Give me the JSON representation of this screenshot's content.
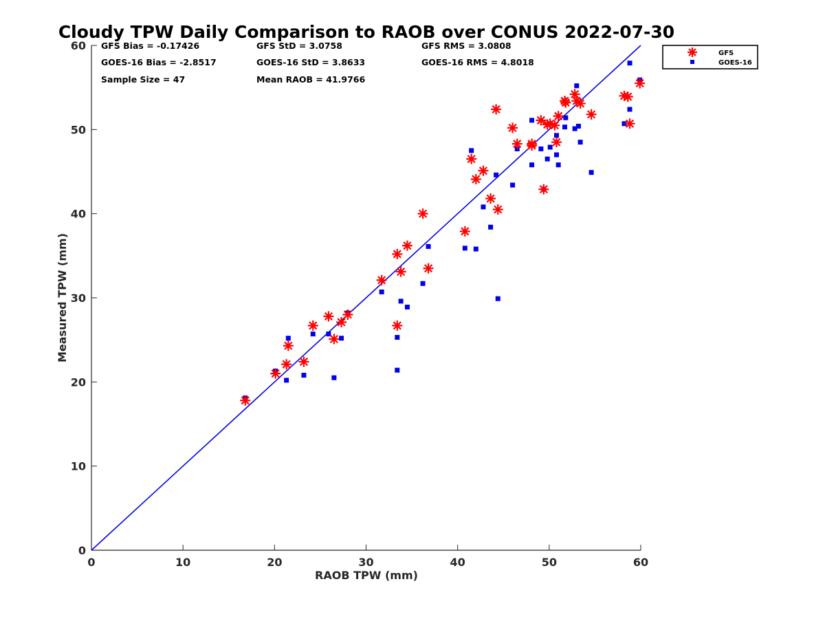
{
  "chart_data": {
    "type": "scatter",
    "title": "Cloudy TPW Daily Comparison to RAOB over CONUS 2022-07-30",
    "xlabel": "RAOB TPW (mm)",
    "ylabel": "Measured TPW (mm)",
    "xlim": [
      0,
      60
    ],
    "ylim": [
      0,
      60
    ],
    "xticks": [
      0,
      10,
      20,
      30,
      40,
      50,
      60
    ],
    "yticks": [
      0,
      10,
      20,
      30,
      40,
      50,
      60
    ],
    "grid": false,
    "legend_position": "top-right, outside plot area",
    "reference_line": {
      "type": "one-to-one",
      "color": "#0000ee"
    },
    "stats": [
      {
        "label": "GFS Bias = -0.17426",
        "row": 0,
        "col": 0
      },
      {
        "label": "GFS StD = 3.0758",
        "row": 0,
        "col": 1
      },
      {
        "label": "GFS RMS = 3.0808",
        "row": 0,
        "col": 2
      },
      {
        "label": "GOES-16 Bias = -2.8517",
        "row": 1,
        "col": 0
      },
      {
        "label": "GOES-16 StD = 3.8633",
        "row": 1,
        "col": 1
      },
      {
        "label": "GOES-16 RMS = 4.8018",
        "row": 1,
        "col": 2
      },
      {
        "label": "Sample Size = 47",
        "row": 2,
        "col": 0
      },
      {
        "label": "Mean RAOB = 41.9766",
        "row": 2,
        "col": 1
      }
    ],
    "series": [
      {
        "name": "GFS",
        "marker": "asterisk",
        "color": "#ff0000",
        "points": [
          [
            16.8,
            17.8
          ],
          [
            20.1,
            21.0
          ],
          [
            21.3,
            22.1
          ],
          [
            21.5,
            24.3
          ],
          [
            23.2,
            22.4
          ],
          [
            24.2,
            26.7
          ],
          [
            25.9,
            27.8
          ],
          [
            26.5,
            25.1
          ],
          [
            27.3,
            27.1
          ],
          [
            28.0,
            28.0
          ],
          [
            31.7,
            32.1
          ],
          [
            33.4,
            35.2
          ],
          [
            33.4,
            26.7
          ],
          [
            33.8,
            33.1
          ],
          [
            34.5,
            36.2
          ],
          [
            36.2,
            40.0
          ],
          [
            36.8,
            33.5
          ],
          [
            40.8,
            37.9
          ],
          [
            41.5,
            46.5
          ],
          [
            42.0,
            44.1
          ],
          [
            42.8,
            45.1
          ],
          [
            43.6,
            41.8
          ],
          [
            44.2,
            52.4
          ],
          [
            44.4,
            40.5
          ],
          [
            46.0,
            50.2
          ],
          [
            46.5,
            48.3
          ],
          [
            48.1,
            48.1
          ],
          [
            48.1,
            48.3
          ],
          [
            49.1,
            51.1
          ],
          [
            49.4,
            42.9
          ],
          [
            49.8,
            50.6
          ],
          [
            50.1,
            50.7
          ],
          [
            50.6,
            50.5
          ],
          [
            50.8,
            48.5
          ],
          [
            51.0,
            51.6
          ],
          [
            51.7,
            53.4
          ],
          [
            51.8,
            53.2
          ],
          [
            52.8,
            54.2
          ],
          [
            53.0,
            53.4
          ],
          [
            53.4,
            53.1
          ],
          [
            54.6,
            51.8
          ],
          [
            58.2,
            54.0
          ],
          [
            58.6,
            53.9
          ],
          [
            58.8,
            50.7
          ],
          [
            59.9,
            55.5
          ]
        ]
      },
      {
        "name": "GOES-16",
        "marker": "square",
        "color": "#0000ee",
        "points": [
          [
            16.8,
            18.1
          ],
          [
            20.1,
            21.3
          ],
          [
            21.3,
            20.2
          ],
          [
            21.5,
            25.2
          ],
          [
            23.2,
            20.8
          ],
          [
            24.2,
            25.7
          ],
          [
            25.9,
            25.7
          ],
          [
            26.5,
            20.5
          ],
          [
            27.3,
            25.2
          ],
          [
            28.0,
            28.2
          ],
          [
            31.7,
            30.7
          ],
          [
            33.4,
            21.4
          ],
          [
            33.4,
            25.3
          ],
          [
            33.8,
            29.6
          ],
          [
            34.5,
            28.9
          ],
          [
            36.2,
            31.7
          ],
          [
            36.8,
            36.1
          ],
          [
            40.8,
            35.9
          ],
          [
            41.5,
            47.5
          ],
          [
            42.0,
            35.8
          ],
          [
            42.8,
            40.8
          ],
          [
            43.6,
            38.4
          ],
          [
            44.2,
            44.6
          ],
          [
            44.4,
            29.9
          ],
          [
            46.0,
            43.4
          ],
          [
            46.5,
            47.7
          ],
          [
            48.1,
            51.1
          ],
          [
            48.1,
            45.8
          ],
          [
            49.1,
            47.7
          ],
          [
            49.4,
            42.9
          ],
          [
            49.8,
            46.5
          ],
          [
            50.1,
            47.9
          ],
          [
            50.8,
            49.3
          ],
          [
            50.8,
            47.0
          ],
          [
            51.0,
            45.8
          ],
          [
            51.7,
            50.3
          ],
          [
            51.8,
            51.4
          ],
          [
            52.8,
            50.1
          ],
          [
            53.0,
            55.2
          ],
          [
            53.2,
            50.4
          ],
          [
            53.4,
            48.5
          ],
          [
            54.6,
            44.9
          ],
          [
            58.2,
            50.7
          ],
          [
            58.8,
            57.9
          ],
          [
            58.8,
            52.4
          ],
          [
            59.9,
            55.9
          ]
        ]
      }
    ]
  }
}
